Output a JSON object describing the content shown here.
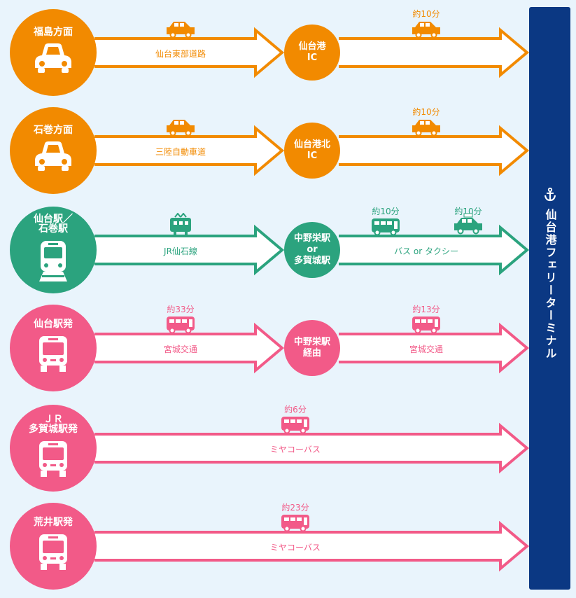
{
  "colors": {
    "orange": "#f28a00",
    "green": "#2ba37e",
    "pink": "#f25a88",
    "terminal": "#0b3883",
    "background": "#e9f4fc"
  },
  "terminal": {
    "name": "仙台港フェリーターミナル",
    "icon": "anchor-icon"
  },
  "routes": [
    {
      "origin": [
        "福島方面"
      ],
      "color": "orange",
      "origin_icon": "car",
      "via": [
        "仙台港",
        "IC"
      ],
      "segments": [
        {
          "label": "仙台東部道路",
          "times": [
            ""
          ],
          "vehicles": [
            "car"
          ]
        },
        {
          "label": "",
          "times": [
            "約10分"
          ],
          "vehicles": [
            "car"
          ]
        }
      ]
    },
    {
      "origin": [
        "石巻方面"
      ],
      "color": "orange",
      "origin_icon": "car",
      "via": [
        "仙台港北",
        "IC"
      ],
      "segments": [
        {
          "label": "三陸自動車道",
          "times": [
            ""
          ],
          "vehicles": [
            "car"
          ]
        },
        {
          "label": "",
          "times": [
            "約10分"
          ],
          "vehicles": [
            "car"
          ]
        }
      ]
    },
    {
      "origin": [
        "仙台駅／",
        "石巻駅"
      ],
      "color": "green",
      "origin_icon": "train",
      "via": [
        "中野栄駅",
        "or",
        "多賀城駅"
      ],
      "segments": [
        {
          "label": "JR仙石線",
          "times": [
            ""
          ],
          "vehicles": [
            "train"
          ]
        },
        {
          "label": "バス or タクシー",
          "times": [
            "約10分",
            "約10分"
          ],
          "vehicles": [
            "bus",
            "taxi"
          ]
        }
      ]
    },
    {
      "origin": [
        "仙台駅発"
      ],
      "color": "pink",
      "origin_icon": "bus",
      "via": [
        "中野栄駅",
        "経由"
      ],
      "segments": [
        {
          "label": "宮城交通",
          "times": [
            "約33分"
          ],
          "vehicles": [
            "bus"
          ]
        },
        {
          "label": "宮城交通",
          "times": [
            "約13分"
          ],
          "vehicles": [
            "bus"
          ]
        }
      ]
    },
    {
      "origin": [
        "ＪＲ",
        "多賀城駅発"
      ],
      "color": "pink",
      "origin_icon": "bus",
      "via": null,
      "segments": [
        {
          "label": "ミヤコーバス",
          "times": [
            "約6分"
          ],
          "vehicles": [
            "bus"
          ]
        }
      ]
    },
    {
      "origin": [
        "荒井駅発"
      ],
      "color": "pink",
      "origin_icon": "bus",
      "via": null,
      "segments": [
        {
          "label": "ミヤコーバス",
          "times": [
            "約23分"
          ],
          "vehicles": [
            "bus"
          ]
        }
      ]
    }
  ]
}
